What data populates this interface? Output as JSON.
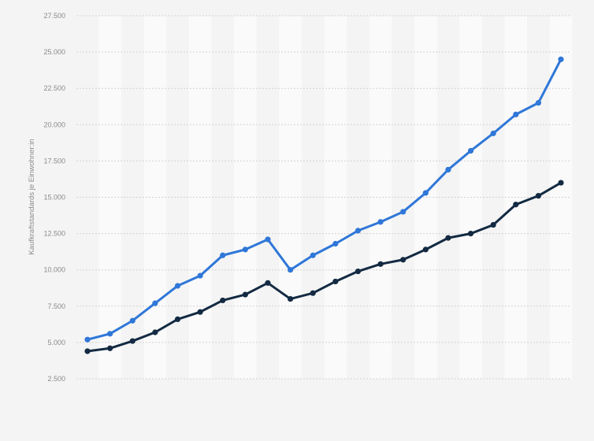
{
  "chart_data": {
    "type": "line",
    "title": "",
    "xlabel": "",
    "ylabel": "Kaufkraftstandards je Einwohner:in",
    "ylim": [
      2500,
      27500
    ],
    "yticks": [
      27500,
      25000,
      22500,
      20000,
      17500,
      15000,
      12500,
      10000,
      7500,
      5000,
      2500
    ],
    "ytick_labels": [
      "27.500",
      "25.000",
      "22.500",
      "20.000",
      "17.500",
      "15.000",
      "12.500",
      "10.000",
      "7.500",
      "5.000",
      "2.500"
    ],
    "grid": true,
    "x_count": 22,
    "series": [
      {
        "color": "#2f77d8",
        "values": [
          5200,
          5600,
          6500,
          7700,
          8900,
          9600,
          11000,
          11400,
          12100,
          10000,
          11000,
          11800,
          12700,
          13300,
          14000,
          15300,
          16900,
          18200,
          19400,
          20700,
          21500,
          24500
        ]
      },
      {
        "color": "#132a42",
        "values": [
          4400,
          4600,
          5100,
          5700,
          6600,
          7100,
          7900,
          8300,
          9100,
          8000,
          8400,
          9200,
          9900,
          10400,
          10700,
          11400,
          12200,
          12500,
          13100,
          14500,
          15100,
          16000
        ]
      }
    ]
  }
}
